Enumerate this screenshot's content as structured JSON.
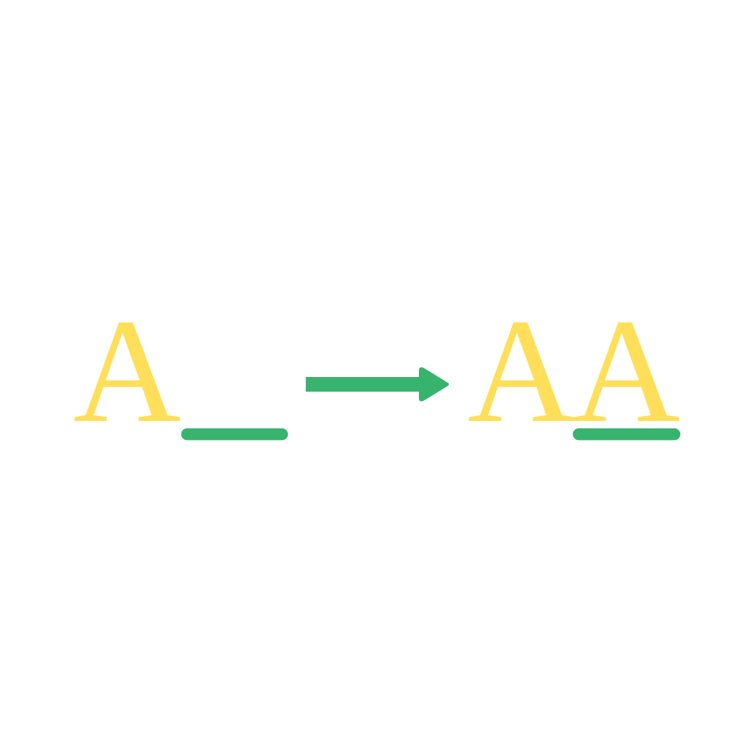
{
  "diagram": {
    "left_letter": "A",
    "right_letters": [
      "A",
      "A"
    ]
  },
  "icons": {
    "blank": "underscore-blank-icon",
    "arrow": "right-arrow-icon"
  },
  "colors": {
    "letter": "#FFDF5A",
    "accent": "#37B36E",
    "background": "#FFFFFF"
  }
}
